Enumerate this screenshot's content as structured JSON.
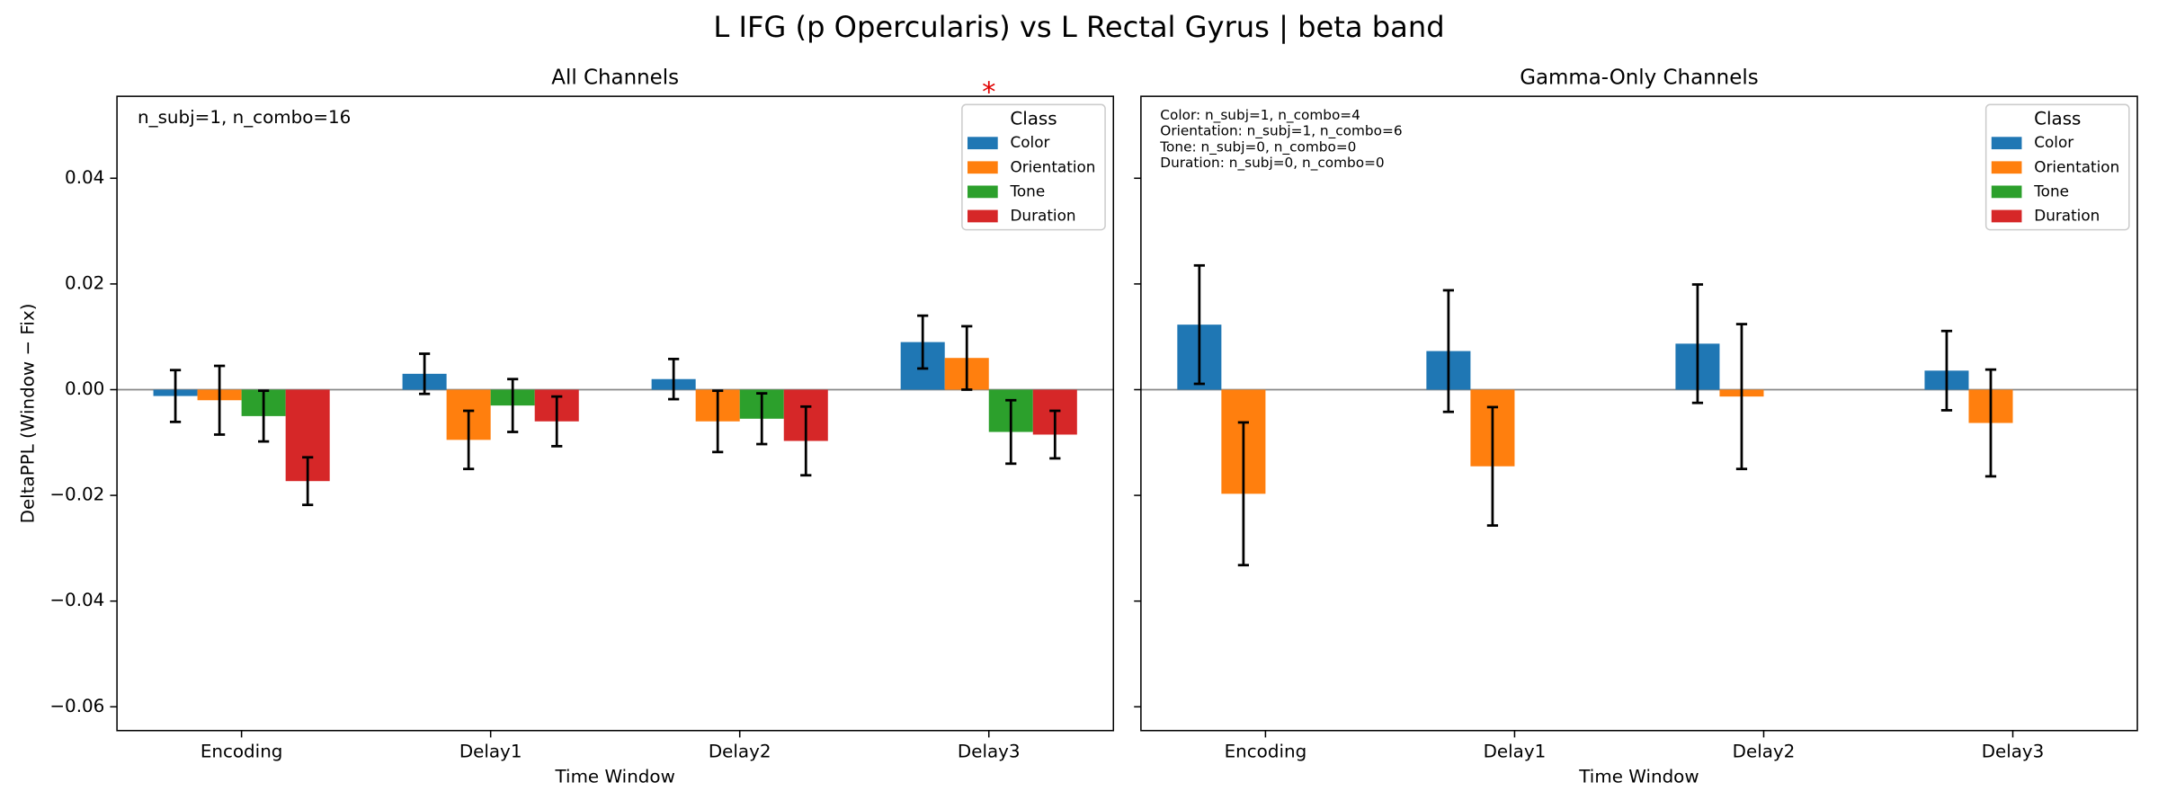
{
  "figure_title": "L IFG (p Opercularis) vs L Rectal Gyrus  |  beta band",
  "chart_data": [
    {
      "type": "bar",
      "title": "All Channels",
      "x_label": "Time Window",
      "y_label": "DeltaPPL (Window − Fix)",
      "categories": [
        "Encoding",
        "Delay1",
        "Delay2",
        "Delay3"
      ],
      "legend_title": "Class",
      "legend": "upper right",
      "series": [
        {
          "name": "Color",
          "color": "#1f77b4",
          "values": [
            -0.0012,
            0.003,
            0.002,
            0.009
          ],
          "errors": [
            0.0049,
            0.0038,
            0.0038,
            0.005
          ]
        },
        {
          "name": "Orientation",
          "color": "#ff7f0e",
          "values": [
            -0.002,
            -0.0095,
            -0.006,
            0.006
          ],
          "errors": [
            0.0065,
            0.0055,
            0.0058,
            0.006
          ]
        },
        {
          "name": "Tone",
          "color": "#2ca02c",
          "values": [
            -0.005,
            -0.003,
            -0.0055,
            -0.008
          ],
          "errors": [
            0.0048,
            0.005,
            0.0048,
            0.006
          ]
        },
        {
          "name": "Duration",
          "color": "#d62728",
          "values": [
            -0.0173,
            -0.006,
            -0.0097,
            -0.0085
          ],
          "errors": [
            0.0045,
            0.0047,
            0.0065,
            0.0045
          ]
        }
      ],
      "ylim": [
        -0.0645,
        0.0555
      ],
      "yticks": [
        {
          "value": -0.06,
          "label": "−0.06"
        },
        {
          "value": -0.04,
          "label": "−0.04"
        },
        {
          "value": -0.02,
          "label": "−0.02"
        },
        {
          "value": 0,
          "label": "0.00"
        },
        {
          "value": 0.02,
          "label": "0.02"
        },
        {
          "value": 0.04,
          "label": "0.04"
        }
      ],
      "notes": [
        "n_subj=1, n_combo=16"
      ],
      "significance": {
        "text": "*",
        "category_index": 3
      }
    },
    {
      "type": "bar",
      "title": "Gamma-Only Channels",
      "x_label": "Time Window",
      "categories": [
        "Encoding",
        "Delay1",
        "Delay2",
        "Delay3"
      ],
      "legend_title": "Class",
      "legend": "upper right",
      "series": [
        {
          "name": "Color",
          "color": "#1f77b4",
          "values": [
            0.0123,
            0.0073,
            0.0087,
            0.0036
          ],
          "errors": [
            0.0112,
            0.0115,
            0.0112,
            0.0075
          ]
        },
        {
          "name": "Orientation",
          "color": "#ff7f0e",
          "values": [
            -0.0197,
            -0.0145,
            -0.0013,
            -0.0063
          ],
          "errors": [
            0.0135,
            0.0112,
            0.0137,
            0.0101
          ]
        },
        {
          "name": "Tone",
          "color": "#2ca02c",
          "values": [
            null,
            null,
            null,
            null
          ],
          "errors": [
            null,
            null,
            null,
            null
          ]
        },
        {
          "name": "Duration",
          "color": "#d62728",
          "values": [
            null,
            null,
            null,
            null
          ],
          "errors": [
            null,
            null,
            null,
            null
          ]
        }
      ],
      "ylim": [
        -0.0645,
        0.0555
      ],
      "yticks": [
        {
          "value": -0.06,
          "label": "−0.06"
        },
        {
          "value": -0.04,
          "label": "−0.04"
        },
        {
          "value": -0.02,
          "label": "−0.02"
        },
        {
          "value": 0,
          "label": "0.00"
        },
        {
          "value": 0.02,
          "label": "0.02"
        },
        {
          "value": 0.04,
          "label": "0.04"
        }
      ],
      "notes": [
        "Color: n_subj=1, n_combo=4",
        "Orientation: n_subj=1, n_combo=6",
        "Tone: n_subj=0, n_combo=0",
        "Duration: n_subj=0, n_combo=0"
      ]
    }
  ]
}
